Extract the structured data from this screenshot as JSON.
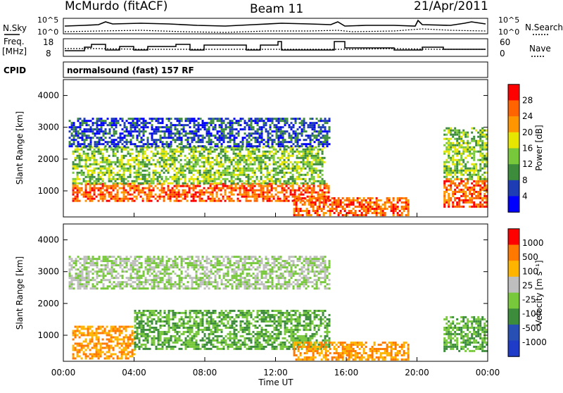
{
  "header": {
    "station": "McMurdo (fitACF)",
    "beam": "Beam 11",
    "date": "21/Apr/2011"
  },
  "top_panels": {
    "nsky_label": "N.Sky",
    "nsearch_label": "N.Search",
    "noise_left_ticks": [
      "10^5",
      "10^0"
    ],
    "noise_right_ticks": [
      "10^5",
      "10^0"
    ],
    "freq_label_1": "Freq.",
    "freq_label_2": "[MHz]",
    "freq_ticks": [
      "18",
      "8"
    ],
    "nave_label": "Nave",
    "nave_ticks": [
      "60",
      "0"
    ],
    "cpid_label": "CPID",
    "cpid_value": "normalsound (fast) 157 RF"
  },
  "chart_data": [
    {
      "type": "heatmap",
      "title": "Power",
      "ylabel": "Slant Range [km]",
      "xlabel": "Time UT",
      "ylim": [
        180,
        4500
      ],
      "y_ticks": [
        "4000",
        "3000",
        "2000",
        "1000"
      ],
      "y_tick_values": [
        4000,
        3000,
        2000,
        1000
      ],
      "x_ticks": [
        "00:00",
        "04:00",
        "08:00",
        "12:00",
        "16:00",
        "20:00",
        "00:00"
      ],
      "colorbar": {
        "label": "Power [dB]",
        "ticks": [
          "28",
          "24",
          "20",
          "16",
          "12",
          "8",
          "4"
        ],
        "range": [
          0,
          32
        ],
        "colors": [
          "#0000ff",
          "#1e3cb4",
          "#3c8c3c",
          "#78c83c",
          "#e6e600",
          "#ff9600",
          "#ff6400",
          "#ff0000"
        ]
      },
      "bands": [
        {
          "t0": 0.5,
          "t1": 15.0,
          "r0": 700,
          "r1": 1250,
          "level": "high"
        },
        {
          "t0": 0.5,
          "t1": 14.8,
          "r0": 1250,
          "r1": 2400,
          "level": "medium"
        },
        {
          "t0": 0.3,
          "t1": 15.0,
          "r0": 2400,
          "r1": 3300,
          "level": "low"
        },
        {
          "t0": 13.0,
          "t1": 19.5,
          "r0": 250,
          "r1": 800,
          "level": "high"
        },
        {
          "t0": 21.5,
          "t1": 24.0,
          "r0": 500,
          "r1": 1400,
          "level": "high"
        },
        {
          "t0": 21.5,
          "t1": 24.0,
          "r0": 1400,
          "r1": 3000,
          "level": "medium"
        }
      ]
    },
    {
      "type": "heatmap",
      "title": "Velocity",
      "ylabel": "Slant Range [km]",
      "xlabel": "Time UT",
      "ylim": [
        180,
        4500
      ],
      "y_ticks": [
        "4000",
        "3000",
        "2000",
        "1000"
      ],
      "y_tick_values": [
        4000,
        3000,
        2000,
        1000
      ],
      "x_ticks": [
        "00:00",
        "04:00",
        "08:00",
        "12:00",
        "16:00",
        "20:00",
        "00:00"
      ],
      "colorbar": {
        "label": "Velocity [m s⁻¹]",
        "ticks": [
          "1000",
          "500",
          "100",
          "25",
          "-25",
          "-100",
          "-500",
          "-1000"
        ],
        "colors": [
          "#1e3cc8",
          "#2850b4",
          "#3c8c3c",
          "#78c83c",
          "#bebebe",
          "#ffb400",
          "#ff7800",
          "#ff0000"
        ]
      },
      "bands": [
        {
          "t0": 0.5,
          "t1": 4.0,
          "r0": 300,
          "r1": 1300,
          "level": "orange"
        },
        {
          "t0": 4.0,
          "t1": 15.0,
          "r0": 600,
          "r1": 1800,
          "level": "green"
        },
        {
          "t0": 0.3,
          "t1": 15.0,
          "r0": 2500,
          "r1": 3500,
          "level": "grey"
        },
        {
          "t0": 13.0,
          "t1": 19.5,
          "r0": 250,
          "r1": 800,
          "level": "orange"
        },
        {
          "t0": 21.5,
          "t1": 24.0,
          "r0": 500,
          "r1": 1600,
          "level": "green"
        }
      ]
    }
  ],
  "xaxis_label": "Time UT"
}
